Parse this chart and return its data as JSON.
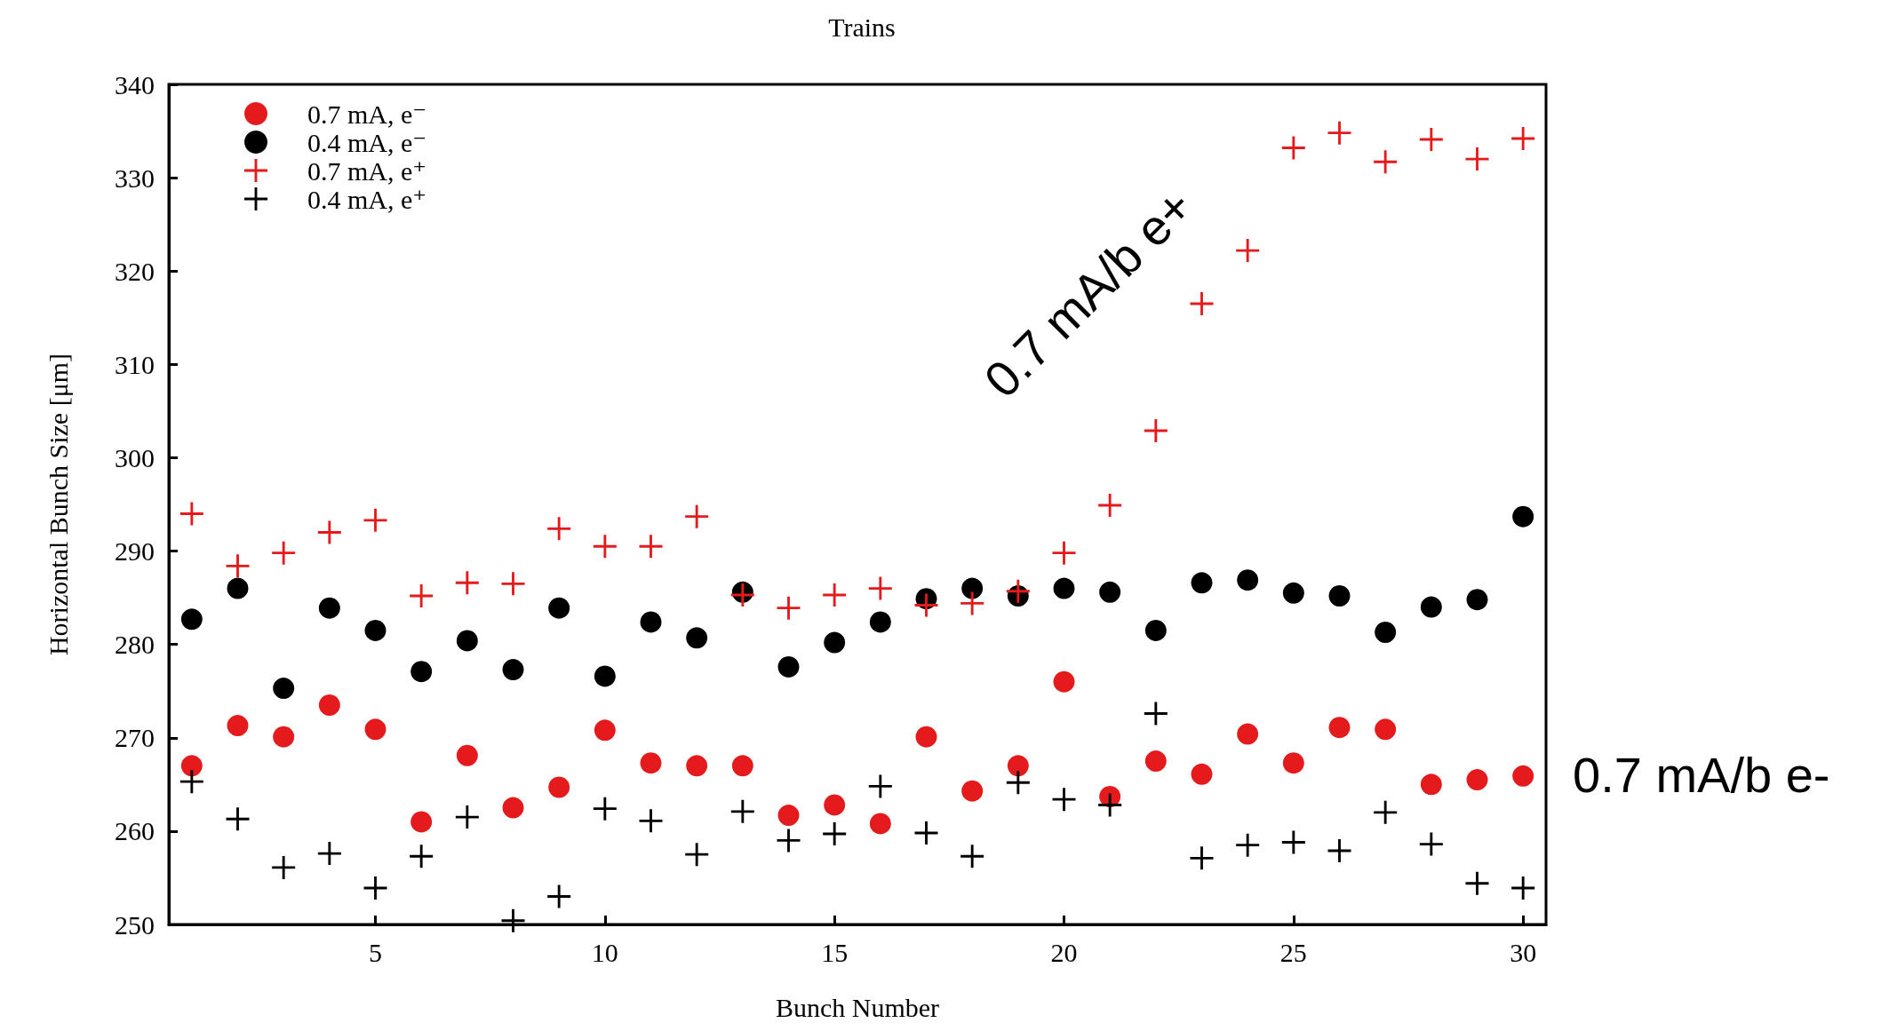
{
  "chart_data": {
    "type": "scatter",
    "title": "Trains",
    "xlabel": "Bunch Number",
    "ylabel": "Horizontal Bunch Size [μm]",
    "x": [
      1,
      2,
      3,
      4,
      5,
      6,
      7,
      8,
      9,
      10,
      11,
      12,
      13,
      14,
      15,
      16,
      17,
      18,
      19,
      20,
      21,
      22,
      23,
      24,
      25,
      26,
      27,
      28,
      29,
      30
    ],
    "series": [
      {
        "name": "0.7 mA, e⁻",
        "color": "#e41a1c",
        "marker": "circle",
        "values": [
          267.0,
          271.3,
          270.1,
          273.5,
          270.9,
          261.0,
          268.1,
          262.5,
          264.7,
          270.8,
          267.3,
          267.0,
          267.0,
          261.7,
          262.8,
          260.8,
          270.1,
          264.3,
          267.0,
          276.0,
          263.7,
          267.5,
          266.1,
          270.4,
          267.3,
          271.1,
          270.9,
          265.0,
          265.5,
          265.9
        ]
      },
      {
        "name": "0.4 mA, e⁻",
        "color": "#000000",
        "marker": "circle",
        "values": [
          282.7,
          286.0,
          275.3,
          283.9,
          281.5,
          277.1,
          280.4,
          277.3,
          283.9,
          276.6,
          282.4,
          280.7,
          285.6,
          277.6,
          280.2,
          282.4,
          284.9,
          286.0,
          285.2,
          286.0,
          285.6,
          281.5,
          286.6,
          286.9,
          285.5,
          285.2,
          281.3,
          284.0,
          284.8,
          293.7
        ]
      },
      {
        "name": "0.7 mA, e⁺",
        "color": "#e41a1c",
        "marker": "cross",
        "values": [
          294.0,
          288.4,
          289.8,
          292.0,
          293.3,
          285.2,
          286.6,
          286.5,
          292.4,
          290.5,
          290.5,
          293.7,
          285.3,
          283.9,
          285.3,
          286.0,
          284.2,
          284.4,
          285.7,
          289.8,
          294.9,
          302.9,
          316.5,
          322.2,
          333.2,
          334.8,
          331.7,
          334.1,
          332.0,
          334.2
        ]
      },
      {
        "name": "0.4 mA, e⁺",
        "color": "#000000",
        "marker": "cross",
        "values": [
          265.3,
          261.3,
          256.1,
          257.6,
          253.9,
          257.3,
          261.5,
          250.4,
          253.0,
          262.4,
          261.1,
          257.5,
          262.1,
          259.0,
          259.7,
          264.8,
          259.8,
          257.3,
          265.2,
          263.4,
          262.8,
          272.6,
          257.1,
          258.5,
          258.8,
          257.9,
          262.0,
          258.6,
          254.4,
          253.9
        ]
      }
    ],
    "xlim": [
      0.5,
      30.5
    ],
    "xticks": [
      5,
      10,
      15,
      20,
      25,
      30
    ],
    "ylim": [
      250,
      340
    ],
    "yticks": [
      250,
      260,
      270,
      280,
      290,
      300,
      310,
      320,
      330,
      340
    ],
    "grid": false,
    "legend": "top left",
    "annotations": [
      "0.7 mA/b e+",
      "0.7 mA/b e-"
    ]
  }
}
